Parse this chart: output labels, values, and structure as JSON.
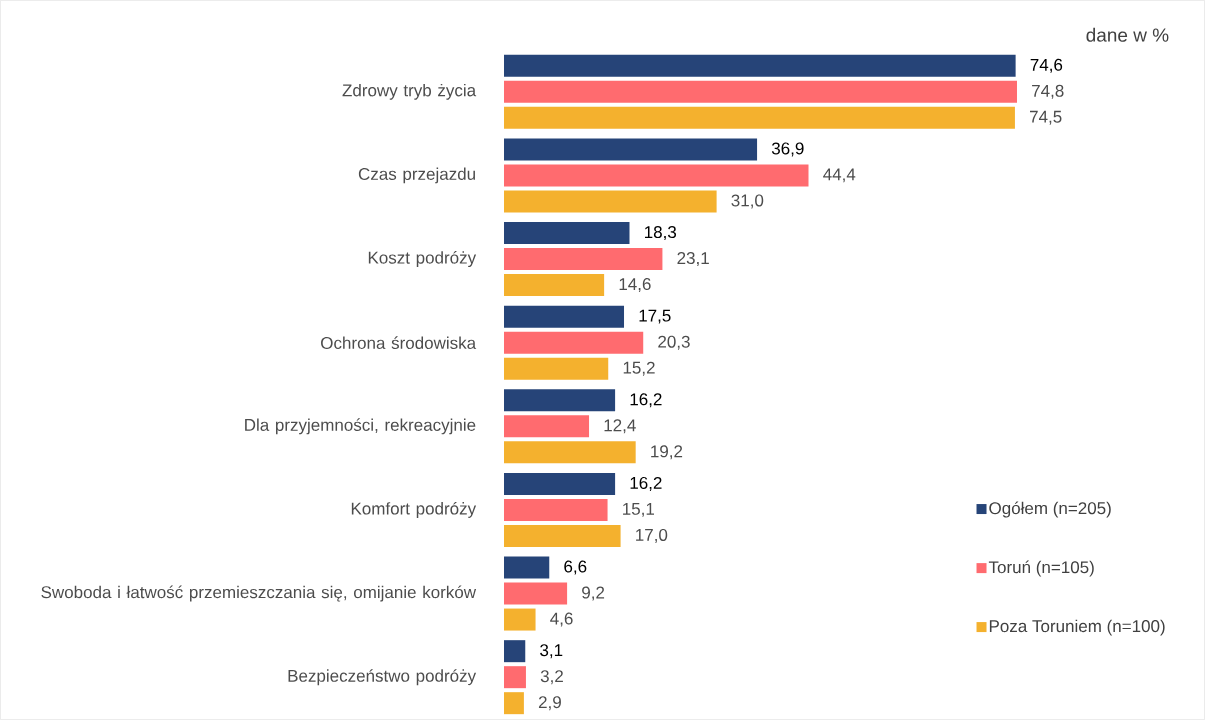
{
  "chart_data": {
    "type": "bar",
    "orientation": "horizontal",
    "categories": [
      "Zdrowy tryb życia",
      "Czas przejazdu",
      "Koszt podróży",
      "Ochrona środowiska",
      "Dla przyjemności, rekreacyjnie",
      "Komfort podróży",
      "Swoboda i łatwość przemieszczania się, omijanie korków",
      "Bezpieczeństwo podróży"
    ],
    "series": [
      {
        "name": "Ogółem (n=205)",
        "color": "#264478",
        "values": [
          74.6,
          36.9,
          18.3,
          17.5,
          16.2,
          16.2,
          6.6,
          3.1
        ],
        "value_labels": [
          "74,6",
          "36,9",
          "18,3",
          "17,5",
          "16,2",
          "16,2",
          "6,6",
          "3,1"
        ]
      },
      {
        "name": "Toruń (n=105)",
        "color": "#ff6b6f",
        "values": [
          74.8,
          44.4,
          23.1,
          20.3,
          12.4,
          15.1,
          9.2,
          3.2
        ],
        "value_labels": [
          "74,8",
          "44,4",
          "23,1",
          "20,3",
          "12,4",
          "15,1",
          "9,2",
          "3,2"
        ]
      },
      {
        "name": "Poza Toruniem (n=100)",
        "color": "#f4b12e",
        "values": [
          74.5,
          31.0,
          14.6,
          15.2,
          19.2,
          17.0,
          4.6,
          2.9
        ],
        "value_labels": [
          "74,5",
          "31,0",
          "14,6",
          "15,2",
          "19,2",
          "17,0",
          "4,6",
          "2,9"
        ]
      }
    ],
    "annotations": [
      "dane w %"
    ],
    "legend": "bottom right"
  }
}
